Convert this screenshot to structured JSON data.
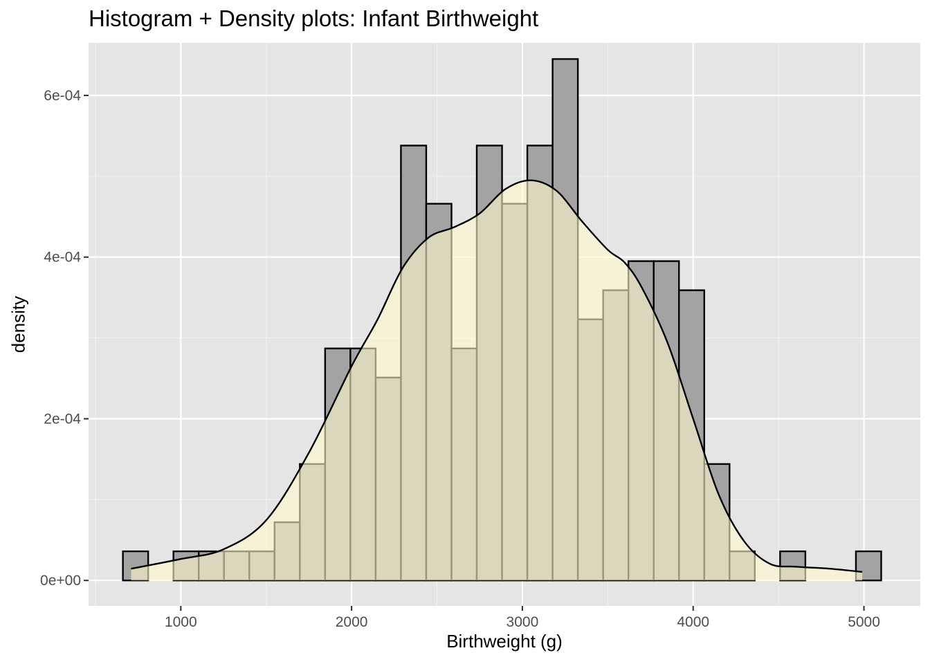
{
  "chart_data": {
    "type": "histogram+density",
    "title": "Histogram + Density plots: Infant Birthweight",
    "xlabel": "Birthweight (g)",
    "ylabel": "density",
    "xlim": [
      460,
      5330
    ],
    "ylim": [
      -3.15e-05,
      0.000665
    ],
    "x_ticks": [
      1000,
      2000,
      3000,
      4000,
      5000
    ],
    "x_tick_labels": [
      "1000",
      "2000",
      "3000",
      "4000",
      "5000"
    ],
    "y_ticks": [
      0,
      0.0002,
      0.0004,
      0.0006
    ],
    "y_tick_labels": [
      "0e+00",
      "2e-04",
      "4e-04",
      "6e-04"
    ],
    "grid": true,
    "background": "#e5e5e5",
    "histogram": {
      "fill": "#a3a3a3",
      "edge": "#000000",
      "bins": [
        {
          "x0": 661,
          "x1": 809,
          "density": 3.6e-05
        },
        {
          "x0": 809,
          "x1": 957,
          "density": 0
        },
        {
          "x0": 957,
          "x1": 1105,
          "density": 3.6e-05
        },
        {
          "x0": 1105,
          "x1": 1253,
          "density": 3.6e-05
        },
        {
          "x0": 1253,
          "x1": 1401,
          "density": 3.6e-05
        },
        {
          "x0": 1401,
          "x1": 1549,
          "density": 3.6e-05
        },
        {
          "x0": 1549,
          "x1": 1697,
          "density": 7.2e-05
        },
        {
          "x0": 1697,
          "x1": 1845,
          "density": 0.000144
        },
        {
          "x0": 1845,
          "x1": 1993,
          "density": 0.000287
        },
        {
          "x0": 1993,
          "x1": 2141,
          "density": 0.000287
        },
        {
          "x0": 2141,
          "x1": 2289,
          "density": 0.000251
        },
        {
          "x0": 2289,
          "x1": 2437,
          "density": 0.000538
        },
        {
          "x0": 2437,
          "x1": 2585,
          "density": 0.000466
        },
        {
          "x0": 2585,
          "x1": 2733,
          "density": 0.000287
        },
        {
          "x0": 2733,
          "x1": 2881,
          "density": 0.000538
        },
        {
          "x0": 2881,
          "x1": 3029,
          "density": 0.000466
        },
        {
          "x0": 3029,
          "x1": 3177,
          "density": 0.000538
        },
        {
          "x0": 3177,
          "x1": 3325,
          "density": 0.000645
        },
        {
          "x0": 3325,
          "x1": 3473,
          "density": 0.000323
        },
        {
          "x0": 3473,
          "x1": 3621,
          "density": 0.000359
        },
        {
          "x0": 3621,
          "x1": 3769,
          "density": 0.000395
        },
        {
          "x0": 3769,
          "x1": 3917,
          "density": 0.000395
        },
        {
          "x0": 3917,
          "x1": 4065,
          "density": 0.000359
        },
        {
          "x0": 4065,
          "x1": 4213,
          "density": 0.000144
        },
        {
          "x0": 4213,
          "x1": 4361,
          "density": 3.6e-05
        },
        {
          "x0": 4361,
          "x1": 4509,
          "density": 0
        },
        {
          "x0": 4509,
          "x1": 4657,
          "density": 3.6e-05
        },
        {
          "x0": 4657,
          "x1": 4805,
          "density": 0
        },
        {
          "x0": 4805,
          "x1": 4953,
          "density": 0
        },
        {
          "x0": 4953,
          "x1": 5101,
          "density": 3.6e-05
        }
      ]
    },
    "density_curve": {
      "fill": "#fffacd",
      "fill_opacity": 0.6,
      "line": "#000000",
      "x": [
        709,
        1000,
        1250,
        1500,
        1750,
        2000,
        2150,
        2300,
        2450,
        2600,
        2750,
        2900,
        3050,
        3200,
        3350,
        3500,
        3600,
        3700,
        3850,
        4000,
        4150,
        4300,
        4450,
        4600,
        4800,
        4990
      ],
      "y": [
        1.45e-05,
        2.65e-05,
        3.85e-05,
        7.45e-05,
        0.000158,
        0.000265,
        0.000322,
        0.000387,
        0.000424,
        0.000437,
        0.000454,
        0.000484,
        0.000495,
        0.000482,
        0.000444,
        0.000409,
        0.000393,
        0.000362,
        0.000294,
        0.0002,
        0.000106,
        4.8e-05,
        2.05e-05,
        1.7e-05,
        1.45e-05,
        1.05e-05
      ]
    }
  }
}
